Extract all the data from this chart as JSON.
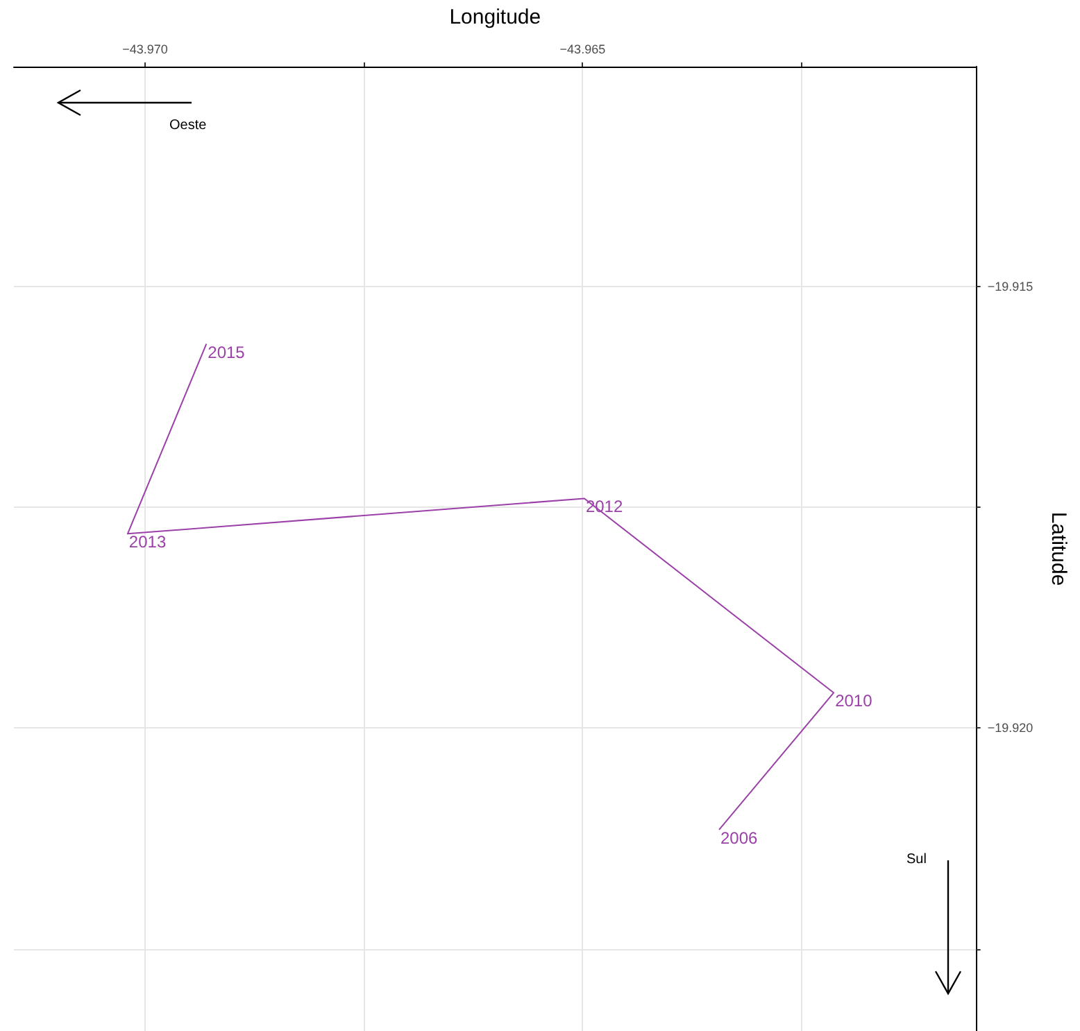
{
  "chart_data": {
    "type": "line",
    "xlabel": "Longitude",
    "ylabel": "Latitude",
    "x": [
      -43.96344,
      -43.96213,
      -43.96498,
      -43.9702,
      -43.9693
    ],
    "series": [
      {
        "color": "#9b40a8",
        "values": [
          -19.92115,
          -19.9196,
          -19.9174,
          -19.9178,
          -19.91565
        ]
      }
    ],
    "xlim": [
      -43.9715,
      -43.9605
    ],
    "xticks": [
      {
        "value": -43.97,
        "label": "−43.970"
      },
      {
        "value": -43.9675,
        "label": null
      },
      {
        "value": -43.965,
        "label": "−43.965"
      },
      {
        "value": -43.9625,
        "label": null
      }
    ],
    "ylim": [
      -19.92343,
      -19.91251
    ],
    "yticks": [
      {
        "value": -19.915,
        "label": "−19.915"
      },
      {
        "value": -19.9175,
        "label": null
      },
      {
        "value": -19.92,
        "label": "−19.920"
      },
      {
        "value": -19.9225,
        "label": null
      }
    ],
    "grid": true,
    "marker": "none",
    "line_style": "solid",
    "annotations": [
      "Oeste",
      "Sul",
      {
        "text": "2006",
        "x": -43.96344,
        "y": -19.92115
      },
      {
        "text": "2010",
        "x": -43.96213,
        "y": -19.9196
      },
      {
        "text": "2012",
        "x": -43.96498,
        "y": -19.9174
      },
      {
        "text": "2013",
        "x": -43.9702,
        "y": -19.9178
      },
      {
        "text": "2015",
        "x": -43.9693,
        "y": -19.91565
      }
    ]
  }
}
